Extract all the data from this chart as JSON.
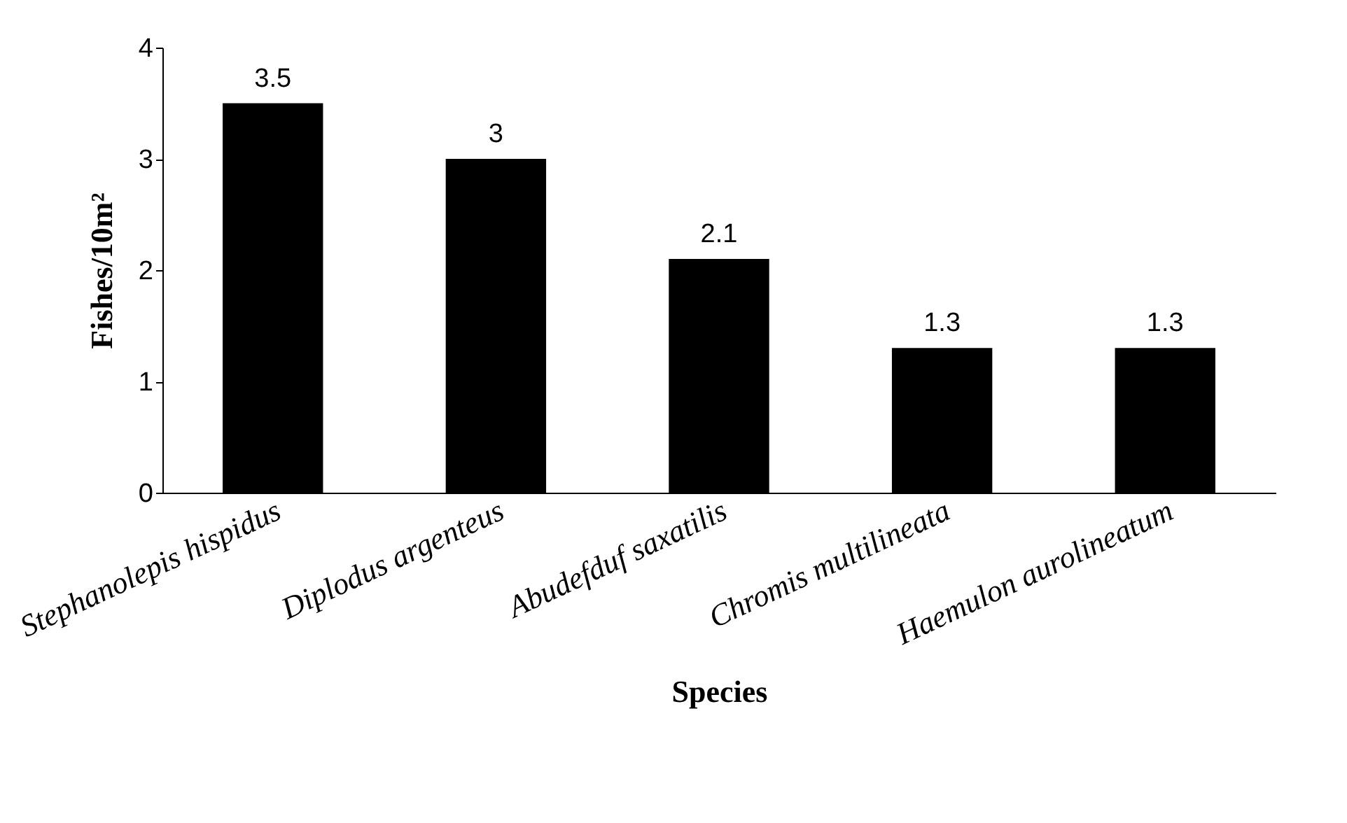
{
  "chart_data": {
    "type": "bar",
    "xlabel": "Species",
    "ylabel": "Fishes/10m²",
    "categories": [
      "Stephanolepis hispidus",
      "Diplodus argenteus",
      "Abudefduf saxatilis",
      "Chromis multilineata",
      "Haemulon aurolineatum"
    ],
    "values": [
      3.5,
      3,
      2.1,
      1.3,
      1.3
    ],
    "color": "#000000",
    "ylim": [
      0,
      4
    ],
    "yticks": [
      0,
      1,
      2,
      3,
      4
    ],
    "data_labels": true
  }
}
